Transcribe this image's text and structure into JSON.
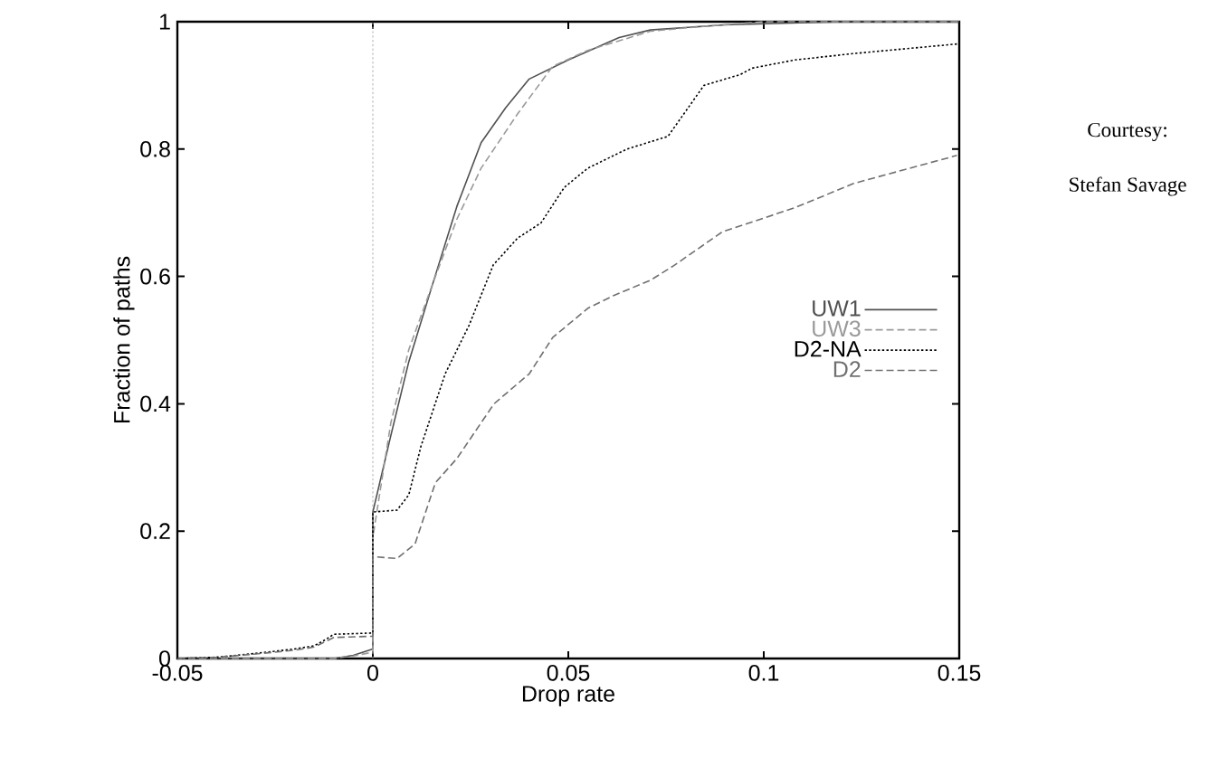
{
  "chart_data": {
    "type": "line",
    "xlabel": "Drop rate",
    "ylabel": "Fraction of paths",
    "xlim": [
      -0.05,
      0.15
    ],
    "ylim": [
      0,
      1
    ],
    "xticks": [
      -0.05,
      0,
      0.05,
      0.1,
      0.15
    ],
    "yticks": [
      0,
      0.2,
      0.4,
      0.6,
      0.8,
      1
    ],
    "legend": "right",
    "grid": false,
    "marker": "none",
    "ref_lines": [
      {
        "axis": "x",
        "value": 0,
        "color": "#b0b0b0",
        "line_style": "dotted"
      }
    ],
    "annotations": [
      "Courtesy:",
      "Stefan Savage"
    ],
    "series": [
      {
        "name": "UW1",
        "color": "#505050",
        "line_style": "solid",
        "x": [
          -0.05,
          -0.01,
          -0.005,
          0,
          0,
          0.0046,
          0.0092,
          0.0154,
          0.0215,
          0.0277,
          0.034,
          0.04,
          0.05,
          0.063,
          0.071,
          0.09,
          0.12,
          0.15
        ],
        "values": [
          0,
          0,
          0.005,
          0.015,
          0.23,
          0.35,
          0.466,
          0.59,
          0.71,
          0.81,
          0.865,
          0.91,
          0.94,
          0.975,
          0.987,
          0.995,
          1,
          1
        ]
      },
      {
        "name": "UW3",
        "color": "#9a9a9a",
        "line_style": "dashed",
        "x": [
          -0.05,
          -0.01,
          -0.005,
          0,
          0,
          0.0046,
          0.0092,
          0.0154,
          0.0215,
          0.0277,
          0.037,
          0.046,
          0.055,
          0.071,
          0.085,
          0.1,
          0.15
        ],
        "values": [
          0,
          0,
          0.004,
          0.01,
          0.19,
          0.37,
          0.485,
          0.59,
          0.69,
          0.77,
          0.855,
          0.93,
          0.955,
          0.985,
          0.993,
          1,
          1
        ]
      },
      {
        "name": "D2-NA",
        "color": "#000000",
        "line_style": "dotted",
        "x": [
          -0.05,
          -0.04,
          -0.03,
          -0.02,
          -0.015,
          -0.012,
          -0.01,
          0,
          0,
          0.0062,
          0.0092,
          0.0123,
          0.0185,
          0.0246,
          0.0308,
          0.037,
          0.043,
          0.049,
          0.055,
          0.065,
          0.0755,
          0.0847,
          0.094,
          0.097,
          0.108,
          0.123,
          0.1494
        ],
        "values": [
          0,
          0.002,
          0.008,
          0.015,
          0.02,
          0.03,
          0.038,
          0.04,
          0.23,
          0.233,
          0.257,
          0.333,
          0.447,
          0.523,
          0.618,
          0.66,
          0.684,
          0.74,
          0.77,
          0.8,
          0.82,
          0.9,
          0.917,
          0.927,
          0.94,
          0.95,
          0.965
        ]
      },
      {
        "name": "D2",
        "color": "#707070",
        "line_style": "dashed",
        "x": [
          -0.05,
          -0.04,
          -0.03,
          -0.02,
          -0.015,
          -0.012,
          -0.01,
          0,
          0,
          0.0062,
          0.0108,
          0.016,
          0.0215,
          0.031,
          0.04,
          0.046,
          0.055,
          0.0616,
          0.071,
          0.077,
          0.0894,
          0.108,
          0.123,
          0.1494
        ],
        "values": [
          0,
          0.002,
          0.007,
          0.013,
          0.018,
          0.027,
          0.033,
          0.035,
          0.16,
          0.157,
          0.18,
          0.276,
          0.314,
          0.4,
          0.447,
          0.504,
          0.55,
          0.57,
          0.594,
          0.617,
          0.67,
          0.708,
          0.746,
          0.79
        ]
      }
    ]
  }
}
